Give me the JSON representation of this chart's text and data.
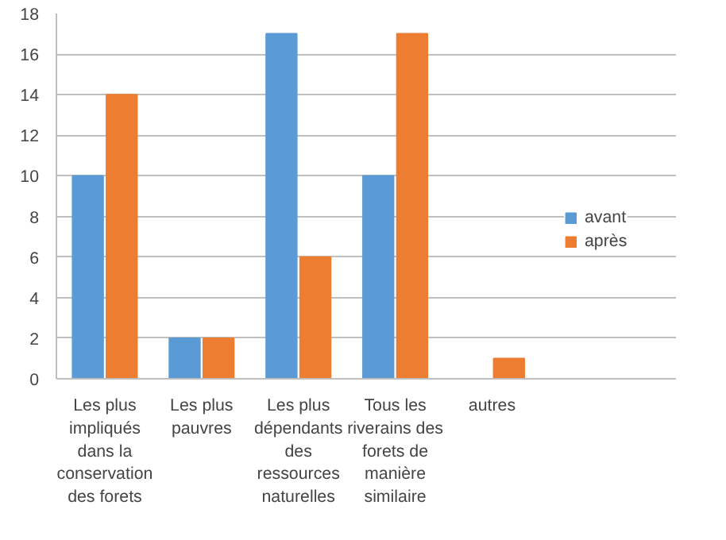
{
  "chart_data": {
    "type": "bar",
    "categories": [
      "Les plus impliqués dans la conservation des forets",
      "Les plus pauvres",
      "Les plus dépendants des ressources naturelles",
      "Tous les riverains des forets de manière similaire",
      "autres"
    ],
    "series": [
      {
        "name": "avant",
        "color": "#5b9bd5",
        "values": [
          10,
          2,
          17,
          10,
          0
        ]
      },
      {
        "name": "après",
        "color": "#ed7d31",
        "values": [
          14,
          2,
          6,
          17,
          1
        ]
      }
    ],
    "ylim": [
      0,
      18
    ],
    "yticks": [
      0,
      2,
      4,
      6,
      8,
      10,
      12,
      14,
      16,
      18
    ],
    "grid": "y",
    "legend": "right"
  }
}
